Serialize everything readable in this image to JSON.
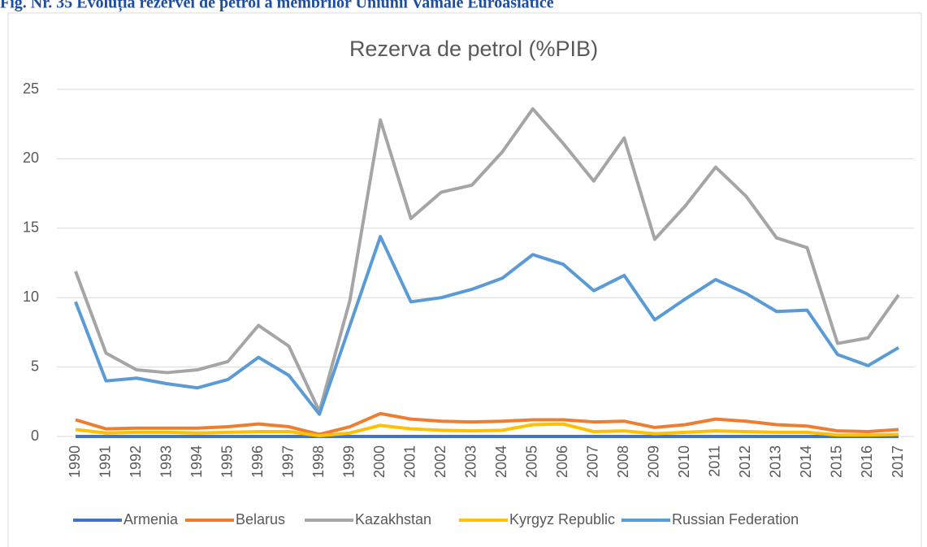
{
  "chart_data": {
    "type": "line",
    "caption": "Fig. Nr. 35 Evoluția rezervei de petrol a membrilor Uniunii Vamale Euroasiatice",
    "title": "Rezerva de petrol (%PIB)",
    "categories": [
      "1990",
      "1991",
      "1992",
      "1993",
      "1994",
      "1995",
      "1996",
      "1997",
      "1998",
      "1999",
      "2000",
      "2001",
      "2002",
      "2003",
      "2004",
      "2005",
      "2006",
      "2007",
      "2008",
      "2009",
      "2010",
      "2011",
      "2012",
      "2013",
      "2014",
      "2015",
      "2016",
      "2017"
    ],
    "series": [
      {
        "name": "Armenia",
        "color": "#4472c4",
        "values": [
          0,
          0,
          0,
          0,
          0,
          0,
          0,
          0,
          0,
          0,
          0,
          0,
          0,
          0,
          0,
          0,
          0,
          0,
          0,
          0,
          0,
          0,
          0,
          0,
          0,
          0,
          0,
          0
        ]
      },
      {
        "name": "Belarus",
        "color": "#ed7d31",
        "values": [
          1.2,
          0.55,
          0.6,
          0.6,
          0.6,
          0.7,
          0.9,
          0.7,
          0.15,
          0.7,
          1.65,
          1.25,
          1.1,
          1.05,
          1.1,
          1.2,
          1.2,
          1.05,
          1.1,
          0.65,
          0.85,
          1.25,
          1.1,
          0.85,
          0.75,
          0.4,
          0.35,
          0.5
        ]
      },
      {
        "name": "Kazakhstan",
        "color": "#a5a5a5",
        "values": [
          11.9,
          6.0,
          4.8,
          4.6,
          4.8,
          5.4,
          8.0,
          6.5,
          1.8,
          9.8,
          22.8,
          15.7,
          17.6,
          18.1,
          20.5,
          23.6,
          21.1,
          18.4,
          21.5,
          14.2,
          16.6,
          19.4,
          17.3,
          14.3,
          13.6,
          6.7,
          7.1,
          10.2
        ]
      },
      {
        "name": "Kyrgyz Republic",
        "color": "#ffc000",
        "values": [
          0.5,
          0.25,
          0.3,
          0.3,
          0.25,
          0.3,
          0.35,
          0.35,
          0.05,
          0.25,
          0.8,
          0.55,
          0.45,
          0.4,
          0.45,
          0.85,
          0.9,
          0.35,
          0.4,
          0.2,
          0.3,
          0.4,
          0.35,
          0.3,
          0.3,
          0.1,
          0.1,
          0.15
        ]
      },
      {
        "name": "Russian Federation",
        "color": "#5b9bd5",
        "values": [
          9.7,
          4.0,
          4.2,
          3.8,
          3.5,
          4.1,
          5.7,
          4.4,
          1.6,
          8.0,
          14.4,
          9.7,
          10.0,
          10.6,
          11.4,
          13.1,
          12.4,
          10.5,
          11.6,
          8.4,
          9.9,
          11.3,
          10.3,
          9.0,
          9.1,
          5.9,
          5.1,
          6.4
        ]
      }
    ],
    "ylim": [
      0,
      25
    ],
    "yticks": [
      0,
      5,
      10,
      15,
      20,
      25
    ],
    "grid": true,
    "legend": "bottom"
  }
}
